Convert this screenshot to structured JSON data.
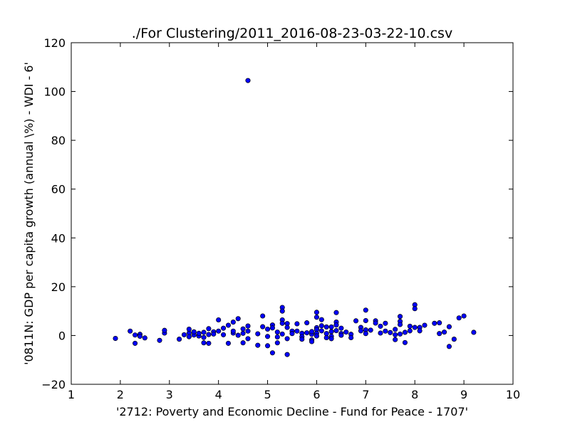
{
  "chart_data": {
    "type": "scatter",
    "title": "./For Clustering/2011_2016-08-23-03-22-10.csv",
    "xlabel": "'2712: Poverty and Economic Decline - Fund for Peace - 1707'",
    "ylabel": "'0811N: GDP per capita growth  (annual \\%) - WDI - 6'",
    "xlim": [
      1,
      10
    ],
    "ylim": [
      -20,
      120
    ],
    "xticks": [
      1,
      2,
      3,
      4,
      5,
      6,
      7,
      8,
      9,
      10
    ],
    "yticks": [
      -20,
      0,
      20,
      40,
      60,
      80,
      100,
      120
    ],
    "grid": false,
    "marker_color": "#0000ff",
    "series": [
      {
        "points": [
          [
            1.9,
            -1.2
          ],
          [
            2.2,
            1.8
          ],
          [
            2.3,
            -3.2
          ],
          [
            2.3,
            0.2
          ],
          [
            2.4,
            0.5
          ],
          [
            2.4,
            -0.3
          ],
          [
            2.5,
            -1.0
          ],
          [
            2.8,
            -2.0
          ],
          [
            2.9,
            1.0
          ],
          [
            2.9,
            2.1
          ],
          [
            3.2,
            -1.5
          ],
          [
            3.3,
            0.3
          ],
          [
            3.4,
            1.0
          ],
          [
            3.4,
            2.6
          ],
          [
            3.4,
            -0.5
          ],
          [
            3.5,
            0.2
          ],
          [
            3.5,
            1.5
          ],
          [
            3.6,
            -0.2
          ],
          [
            3.6,
            0.9
          ],
          [
            3.7,
            -0.8
          ],
          [
            3.7,
            1.3
          ],
          [
            3.7,
            -3.0
          ],
          [
            3.8,
            2.8
          ],
          [
            3.8,
            -3.2
          ],
          [
            3.8,
            0.4
          ],
          [
            3.9,
            1.5
          ],
          [
            3.9,
            0.6
          ],
          [
            4.0,
            6.4
          ],
          [
            4.0,
            1.8
          ],
          [
            4.1,
            0.3
          ],
          [
            4.1,
            3.0
          ],
          [
            4.2,
            4.2
          ],
          [
            4.2,
            -3.2
          ],
          [
            4.3,
            1.0
          ],
          [
            4.3,
            5.5
          ],
          [
            4.3,
            1.8
          ],
          [
            4.4,
            0.1
          ],
          [
            4.4,
            6.9
          ],
          [
            4.5,
            -3.0
          ],
          [
            4.5,
            0.9
          ],
          [
            4.5,
            2.7
          ],
          [
            4.6,
            1.8
          ],
          [
            4.6,
            3.9
          ],
          [
            4.6,
            -1.3
          ],
          [
            4.6,
            104.5
          ],
          [
            4.8,
            -4.0
          ],
          [
            4.8,
            0.7
          ],
          [
            4.9,
            8.0
          ],
          [
            4.9,
            3.6
          ],
          [
            5.0,
            2.6
          ],
          [
            5.0,
            -0.4
          ],
          [
            5.0,
            -4.2
          ],
          [
            5.1,
            4.3
          ],
          [
            5.1,
            3.1
          ],
          [
            5.1,
            -7.1
          ],
          [
            5.2,
            1.4
          ],
          [
            5.2,
            -0.6
          ],
          [
            5.2,
            -3.0
          ],
          [
            5.3,
            11.5
          ],
          [
            5.3,
            10.0
          ],
          [
            5.3,
            6.4
          ],
          [
            5.3,
            5.0
          ],
          [
            5.3,
            0.6
          ],
          [
            5.4,
            4.9
          ],
          [
            5.4,
            3.3
          ],
          [
            5.4,
            -1.3
          ],
          [
            5.4,
            -7.8
          ],
          [
            5.5,
            1.8
          ],
          [
            5.5,
            0.8
          ],
          [
            5.6,
            4.8
          ],
          [
            5.6,
            1.8
          ],
          [
            5.7,
            0.9
          ],
          [
            5.7,
            -0.5
          ],
          [
            5.7,
            -1.5
          ],
          [
            5.8,
            5.2
          ],
          [
            5.8,
            1.1
          ],
          [
            5.9,
            0.5
          ],
          [
            5.9,
            -1.8
          ],
          [
            5.9,
            -2.5
          ],
          [
            5.9,
            1.6
          ],
          [
            6.0,
            9.5
          ],
          [
            6.0,
            7.5
          ],
          [
            6.0,
            3.2
          ],
          [
            6.0,
            2.4
          ],
          [
            6.0,
            0.9
          ],
          [
            6.0,
            -0.2
          ],
          [
            6.1,
            6.5
          ],
          [
            6.1,
            4.0
          ],
          [
            6.1,
            1.9
          ],
          [
            6.2,
            3.5
          ],
          [
            6.2,
            0.8
          ],
          [
            6.2,
            -0.9
          ],
          [
            6.3,
            3.5
          ],
          [
            6.3,
            1.6
          ],
          [
            6.3,
            -0.3
          ],
          [
            6.3,
            -1.3
          ],
          [
            6.4,
            9.4
          ],
          [
            6.4,
            5.5
          ],
          [
            6.4,
            4.3
          ],
          [
            6.4,
            2.0
          ],
          [
            6.5,
            3.0
          ],
          [
            6.5,
            0.8
          ],
          [
            6.5,
            0.1
          ],
          [
            6.6,
            1.4
          ],
          [
            6.7,
            0.5
          ],
          [
            6.7,
            -0.9
          ],
          [
            6.8,
            6.0
          ],
          [
            6.9,
            3.3
          ],
          [
            6.9,
            1.9
          ],
          [
            7.0,
            10.4
          ],
          [
            7.0,
            6.1
          ],
          [
            7.0,
            2.3
          ],
          [
            7.0,
            0.8
          ],
          [
            7.1,
            2.2
          ],
          [
            7.2,
            6.0
          ],
          [
            7.2,
            5.1
          ],
          [
            7.3,
            3.8
          ],
          [
            7.3,
            1.0
          ],
          [
            7.4,
            5.0
          ],
          [
            7.4,
            1.8
          ],
          [
            7.5,
            1.2
          ],
          [
            7.6,
            2.5
          ],
          [
            7.6,
            0.3
          ],
          [
            7.6,
            -1.7
          ],
          [
            7.7,
            7.8
          ],
          [
            7.7,
            5.8
          ],
          [
            7.7,
            4.5
          ],
          [
            7.7,
            0.6
          ],
          [
            7.8,
            -2.9
          ],
          [
            7.8,
            1.3
          ],
          [
            7.9,
            3.8
          ],
          [
            7.9,
            1.9
          ],
          [
            8.0,
            12.6
          ],
          [
            8.0,
            11.0
          ],
          [
            8.0,
            3.3
          ],
          [
            8.1,
            3.3
          ],
          [
            8.1,
            1.9
          ],
          [
            8.2,
            4.2
          ],
          [
            8.4,
            5.0
          ],
          [
            8.5,
            5.2
          ],
          [
            8.5,
            0.8
          ],
          [
            8.6,
            1.4
          ],
          [
            8.7,
            3.6
          ],
          [
            8.7,
            -4.5
          ],
          [
            8.8,
            -1.5
          ],
          [
            8.9,
            7.2
          ],
          [
            9.0,
            8.0
          ],
          [
            9.2,
            1.3
          ]
        ]
      }
    ]
  }
}
